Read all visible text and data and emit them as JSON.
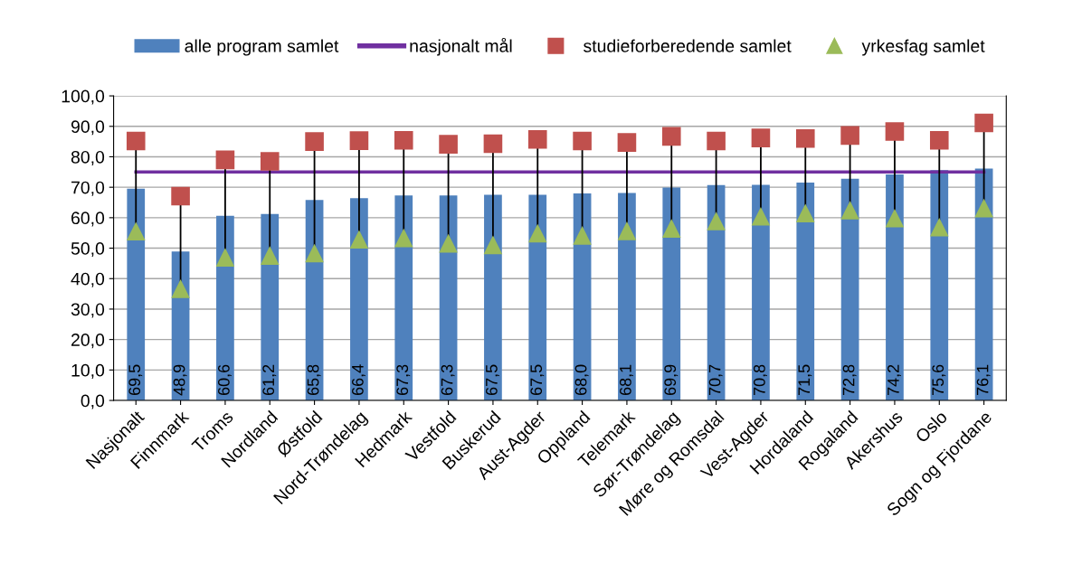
{
  "chart_data": {
    "type": "bar",
    "categories": [
      "Nasjonalt",
      "Finnmark",
      "Troms",
      "Nordland",
      "Østfold",
      "Nord-Trøndelag",
      "Hedmark",
      "Vestfold",
      "Buskerud",
      "Aust-Agder",
      "Oppland",
      "Telemark",
      "Sør-Trøndelag",
      "Møre og Romsdal",
      "Vest-Agder",
      "Hordaland",
      "Rogaland",
      "Akershus",
      "Oslo",
      "Sogn og Fjordane"
    ],
    "series": [
      {
        "name": "alle program samlet",
        "type": "bar",
        "color": "#4f81bd",
        "value_labels": [
          "69,5",
          "48,9",
          "60,6",
          "61,2",
          "65,8",
          "66,4",
          "67,3",
          "67,3",
          "67,5",
          "67,5",
          "68,0",
          "68,1",
          "69,9",
          "70,7",
          "70,8",
          "71,5",
          "72,8",
          "74,2",
          "75,6",
          "76,1"
        ],
        "values": [
          69.5,
          48.9,
          60.6,
          61.2,
          65.8,
          66.4,
          67.3,
          67.3,
          67.5,
          67.5,
          68.0,
          68.1,
          69.9,
          70.7,
          70.8,
          71.5,
          72.8,
          74.2,
          75.6,
          76.1
        ]
      },
      {
        "name": "nasjonalt mål",
        "type": "line",
        "color": "#7030a0",
        "values": [
          75,
          75,
          75,
          75,
          75,
          75,
          75,
          75,
          75,
          75,
          75,
          75,
          75,
          75,
          75,
          75,
          75,
          75,
          75,
          75
        ]
      },
      {
        "name": "studieforberedende samlet",
        "type": "scatter",
        "marker": "square",
        "color": "#c0504d",
        "values": [
          85.2,
          67.1,
          79.0,
          78.5,
          85.0,
          85.3,
          85.4,
          84.1,
          84.3,
          85.7,
          85.2,
          84.7,
          86.7,
          85.2,
          86.2,
          86.0,
          87.0,
          88.3,
          85.4,
          91.1
        ]
      },
      {
        "name": "yrkesfag samlet",
        "type": "scatter",
        "marker": "triangle",
        "color": "#9bbb59",
        "values": [
          55.6,
          36.7,
          47.0,
          47.6,
          48.4,
          52.9,
          53.4,
          51.6,
          51.1,
          54.9,
          54.2,
          55.7,
          56.5,
          58.9,
          60.5,
          61.5,
          62.5,
          59.9,
          56.9,
          63.2
        ]
      }
    ],
    "ylim": [
      0,
      100
    ],
    "yticks": [
      {
        "value": 0,
        "label": "0,0"
      },
      {
        "value": 10,
        "label": "10,0"
      },
      {
        "value": 20,
        "label": "20,0"
      },
      {
        "value": 30,
        "label": "30,0"
      },
      {
        "value": 40,
        "label": "40,0"
      },
      {
        "value": 50,
        "label": "50,0"
      },
      {
        "value": 60,
        "label": "60,0"
      },
      {
        "value": 70,
        "label": "70,0"
      },
      {
        "value": 80,
        "label": "80,0"
      },
      {
        "value": 90,
        "label": "90,0"
      },
      {
        "value": 100,
        "label": "100,0"
      }
    ],
    "grid": "y",
    "legend": "top"
  }
}
